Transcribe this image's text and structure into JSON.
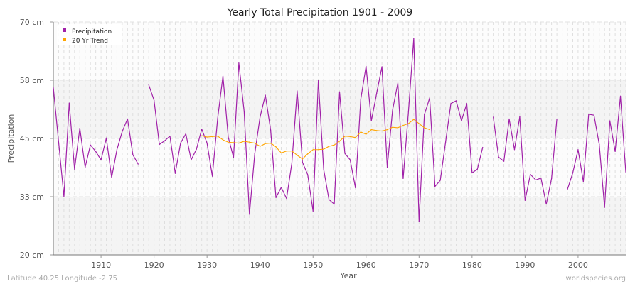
{
  "chart_data": {
    "type": "line",
    "title": "Yearly Total Precipitation 1901 - 2009",
    "xlabel": "Year",
    "ylabel": "Precipitation",
    "xlim": [
      1901,
      2009
    ],
    "ylim": [
      20,
      70
    ],
    "grid": true,
    "legend_position": "top-left",
    "x_ticks": [
      1910,
      1920,
      1930,
      1940,
      1950,
      1960,
      1970,
      1980,
      1990,
      2000
    ],
    "y_ticks": [
      {
        "value": 70,
        "label": "70 cm"
      },
      {
        "value": 57.5,
        "label": "58 cm"
      },
      {
        "value": 45,
        "label": "45 cm"
      },
      {
        "value": 32.5,
        "label": "33 cm"
      },
      {
        "value": 20,
        "label": "20 cm"
      }
    ],
    "series": [
      {
        "name": "Precipitation",
        "color": "#a020a8",
        "start_year": 1901,
        "values": [
          55.9,
          44.2,
          32.5,
          52.6,
          38.4,
          47.2,
          38.8,
          43.6,
          42.2,
          40.4,
          45.1,
          36.6,
          42.6,
          46.5,
          49.2,
          41.5,
          39.5,
          null,
          56.5,
          53.2,
          43.7,
          44.5,
          45.5,
          37.5,
          44.0,
          46.0,
          40.4,
          42.7,
          47.0,
          44.0,
          36.9,
          49.3,
          58.4,
          45.3,
          40.9,
          61.2,
          50.8,
          28.7,
          41.7,
          49.6,
          54.3,
          46.8,
          32.3,
          34.5,
          32.1,
          39.7,
          55.2,
          39.9,
          37.2,
          29.4,
          57.5,
          38.4,
          31.9,
          30.9,
          55.0,
          41.8,
          40.4,
          34.4,
          53.4,
          60.5,
          48.8,
          54.7,
          60.4,
          38.8,
          51.1,
          56.9,
          36.4,
          50.8,
          66.5,
          27.2,
          50.1,
          53.7,
          34.7,
          36.0,
          44.2,
          52.5,
          53.1,
          48.8,
          52.5,
          37.6,
          38.4,
          43.1,
          null,
          49.6,
          41.0,
          40.1,
          49.2,
          42.6,
          49.7,
          31.7,
          37.3,
          36.1,
          36.5,
          30.9,
          36.4,
          49.2,
          null,
          34.1,
          37.6,
          42.6,
          35.7,
          50.2,
          50.0,
          43.7,
          30.2,
          48.8,
          42.2,
          54.1,
          37.8
        ]
      },
      {
        "name": "20 Yr Trend",
        "color": "#ffa500",
        "start_year": 1929,
        "values": [
          45.6,
          45.3,
          45.4,
          45.5,
          44.7,
          44.2,
          44.1,
          44.0,
          44.4,
          44.2,
          44.0,
          43.3,
          43.9,
          44.0,
          43.2,
          41.9,
          42.3,
          42.3,
          41.4,
          40.6,
          41.7,
          42.6,
          42.6,
          42.7,
          43.3,
          43.6,
          44.4,
          45.5,
          45.4,
          45.2,
          46.4,
          45.9,
          46.9,
          46.7,
          46.6,
          46.9,
          47.4,
          47.3,
          47.8,
          48.2,
          49.1,
          48.2,
          47.3,
          46.9
        ]
      }
    ]
  },
  "footer": {
    "location": "Latitude 40.25 Longitude -2.75",
    "source": "worldspecies.org"
  }
}
